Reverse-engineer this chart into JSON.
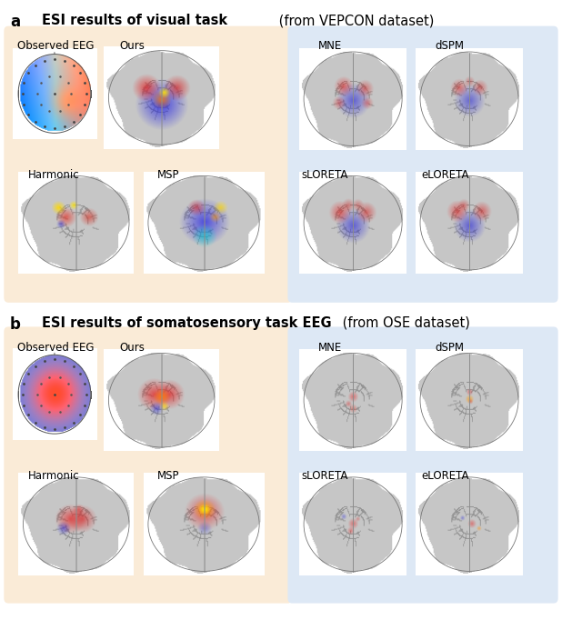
{
  "fig_width": 6.18,
  "fig_height": 6.82,
  "bg_color": "#ffffff",
  "panel_a_title_bold": "ESI results of visual task",
  "panel_a_title_normal": " (from VEPCON dataset)",
  "panel_b_title_bold": "ESI results of somatosensory task EEG",
  "panel_b_title_normal": " (from OSE dataset)",
  "label_a": "a",
  "label_b": "b",
  "warm_bg": "#faebd7",
  "cool_bg": "#dde8f5",
  "title_fontsize": 10.5,
  "sublabel_fontsize": 8.5,
  "panel_label_fontsize": 12
}
